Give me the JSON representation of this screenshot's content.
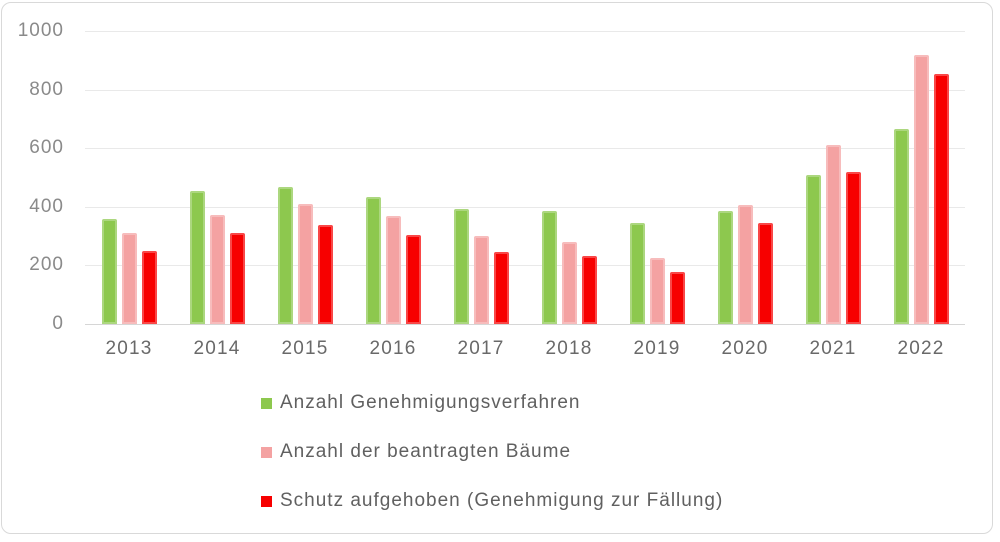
{
  "chart_data": {
    "type": "bar",
    "title": "",
    "xlabel": "",
    "ylabel": "",
    "categories": [
      "2013",
      "2014",
      "2015",
      "2016",
      "2017",
      "2018",
      "2019",
      "2020",
      "2021",
      "2022"
    ],
    "series": [
      {
        "name": "Anzahl Genehmigungsverfahren",
        "color": "#8dc84e",
        "values": [
          360,
          455,
          467,
          435,
          392,
          386,
          344,
          386,
          510,
          667
        ]
      },
      {
        "name": "Anzahl der beantragten Bäume",
        "color": "#f4a2a2",
        "values": [
          310,
          372,
          408,
          367,
          302,
          280,
          225,
          405,
          612,
          917
        ]
      },
      {
        "name": "Schutz aufgehoben (Genehmigung zur Fällung)",
        "color": "#f70000",
        "values": [
          250,
          312,
          338,
          305,
          245,
          233,
          178,
          344,
          520,
          855
        ]
      }
    ],
    "ylim": [
      0,
      1000
    ],
    "yticks": [
      0,
      200,
      400,
      600,
      800,
      1000
    ],
    "grid": true,
    "legend_position": "bottom-left",
    "colors": {
      "gridline": "#e9e9e9",
      "axis_line": "#d6d6d6",
      "y_tick_text": "#8a8a8a",
      "x_tick_text": "#696969",
      "legend_text": "#606060",
      "frame_border": "#d9d9d9",
      "background": "#ffffff"
    }
  }
}
